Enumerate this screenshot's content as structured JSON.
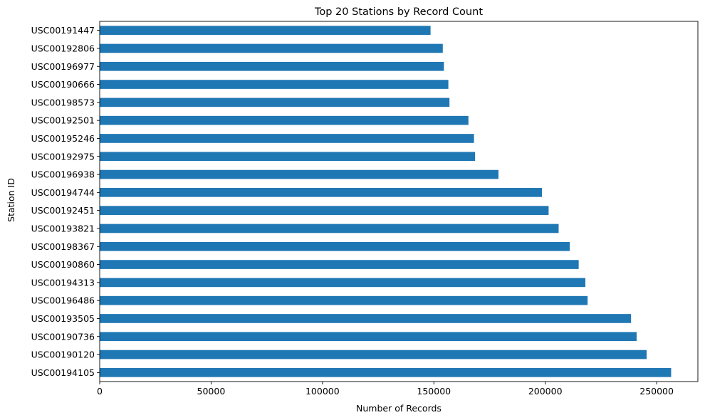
{
  "chart_data": {
    "type": "bar",
    "orientation": "horizontal",
    "title": "Top 20 Stations by Record Count",
    "xlabel": "Number of Records",
    "ylabel": "Station ID",
    "xlim": [
      0,
      268500
    ],
    "xticks": [
      0,
      50000,
      100000,
      150000,
      200000,
      250000
    ],
    "xtick_labels": [
      "0",
      "50000",
      "100000",
      "150000",
      "200000",
      "250000"
    ],
    "grid": false,
    "bar_color": "#1f77b4",
    "categories": [
      "USC00191447",
      "USC00192806",
      "USC00196977",
      "USC00190666",
      "USC00198573",
      "USC00192501",
      "USC00195246",
      "USC00192975",
      "USC00196938",
      "USC00194744",
      "USC00192451",
      "USC00193821",
      "USC00198367",
      "USC00190860",
      "USC00194313",
      "USC00196486",
      "USC00193505",
      "USC00190736",
      "USC00190120",
      "USC00194105"
    ],
    "values": [
      148500,
      154000,
      154500,
      156500,
      157000,
      165500,
      168000,
      168500,
      179000,
      198500,
      201500,
      206000,
      211000,
      215000,
      218000,
      219000,
      238500,
      241000,
      245500,
      256500
    ]
  }
}
